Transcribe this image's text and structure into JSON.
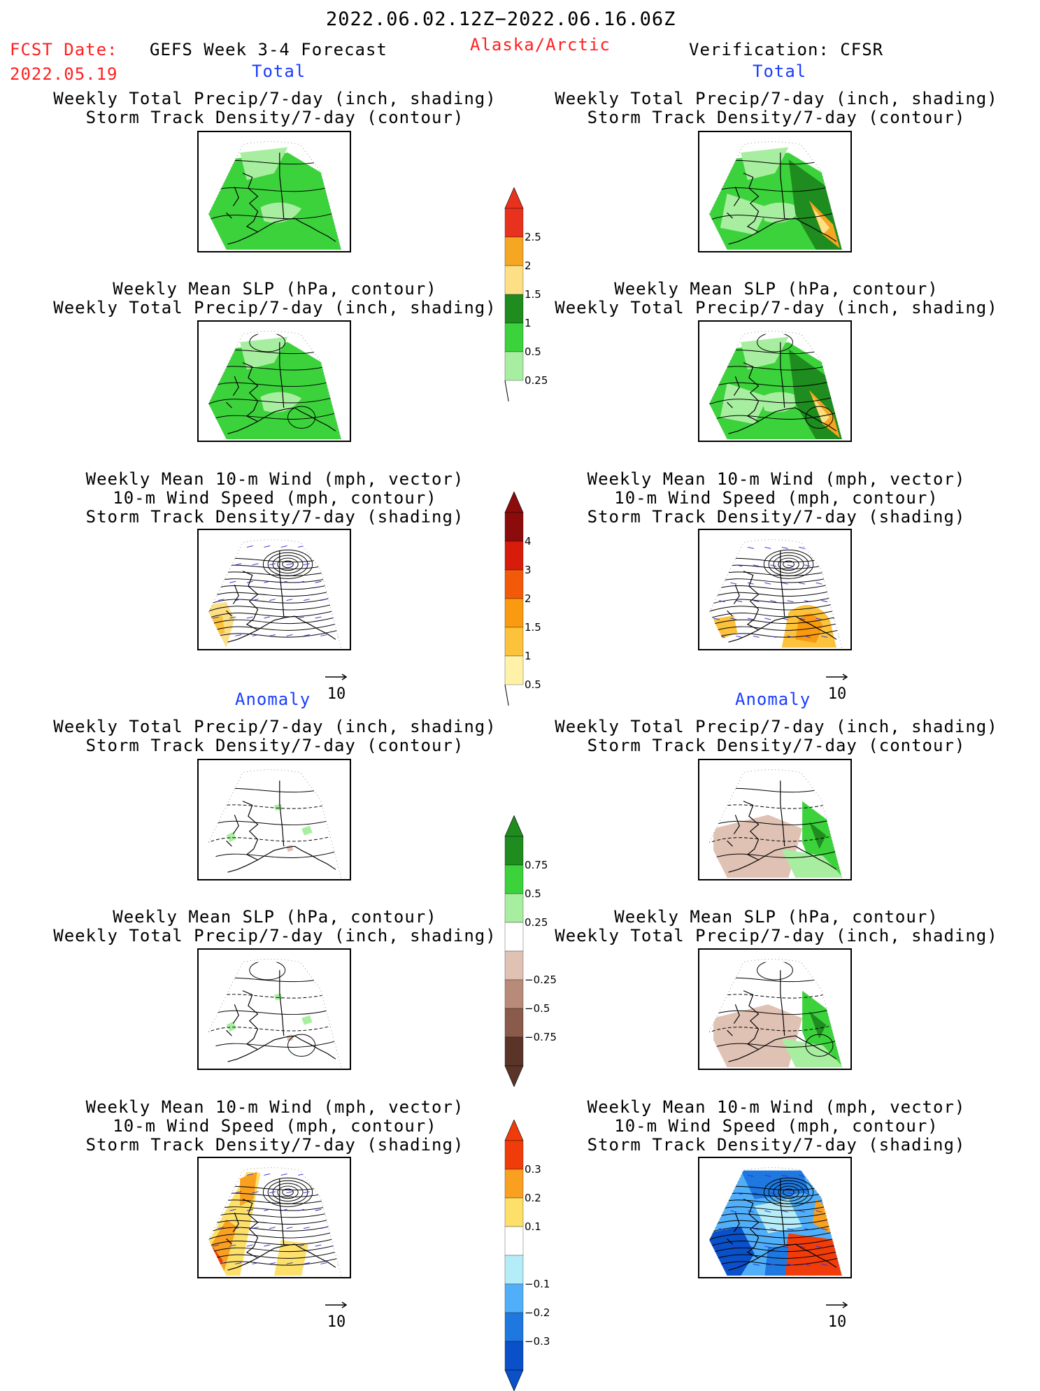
{
  "header": {
    "period": "2022.06.02.12Z−2022.06.16.06Z",
    "fcst_label": "FCST Date:",
    "fcst_date": "2022.05.19",
    "model": "GEFS Week 3-4 Forecast",
    "region": "Alaska/Arctic",
    "verification": "Verification: CFSR"
  },
  "sections": {
    "total_left": "Total",
    "total_right": "Total",
    "anomaly_left": "Anomaly",
    "anomaly_right": "Anomaly"
  },
  "panels": [
    {
      "id": "p1",
      "lines": [
        "Weekly Total Precip/7-day (inch, shading)",
        "Storm Track Density/7-day (contour)"
      ]
    },
    {
      "id": "p2",
      "lines": [
        "Weekly Total Precip/7-day (inch, shading)",
        "Storm Track Density/7-day (contour)"
      ]
    },
    {
      "id": "p3",
      "lines": [
        "Weekly Mean SLP (hPa, contour)",
        "Weekly Total Precip/7-day (inch, shading)"
      ]
    },
    {
      "id": "p4",
      "lines": [
        "Weekly Mean SLP (hPa, contour)",
        "Weekly Total Precip/7-day (inch, shading)"
      ]
    },
    {
      "id": "p5",
      "lines": [
        "Weekly Mean 10-m Wind (mph, vector)",
        "10-m Wind Speed (mph, contour)",
        "Storm Track Density/7-day (shading)"
      ]
    },
    {
      "id": "p6",
      "lines": [
        "Weekly Mean 10-m Wind (mph, vector)",
        "10-m Wind Speed (mph, contour)",
        "Storm Track Density/7-day (shading)"
      ]
    },
    {
      "id": "p7",
      "lines": [
        "Weekly Total Precip/7-day (inch, shading)",
        "Storm Track Density/7-day (contour)"
      ]
    },
    {
      "id": "p8",
      "lines": [
        "Weekly Total Precip/7-day (inch, shading)",
        "Storm Track Density/7-day (contour)"
      ]
    },
    {
      "id": "p9",
      "lines": [
        "Weekly Mean SLP (hPa, contour)",
        "Weekly Total Precip/7-day (inch, shading)"
      ]
    },
    {
      "id": "p10",
      "lines": [
        "Weekly Mean SLP (hPa, contour)",
        "Weekly Total Precip/7-day (inch, shading)"
      ]
    },
    {
      "id": "p11",
      "lines": [
        "Weekly Mean 10-m Wind (mph, vector)",
        "10-m Wind Speed (mph, contour)",
        "Storm Track Density/7-day (shading)"
      ]
    },
    {
      "id": "p12",
      "lines": [
        "Weekly Mean 10-m Wind (mph, vector)",
        "10-m Wind Speed (mph, contour)",
        "Storm Track Density/7-day (shading)"
      ]
    }
  ],
  "colorbars": [
    {
      "id": "precip_total",
      "labels": [
        "2.5",
        "2",
        "1.5",
        "1",
        "0.5",
        "0.25"
      ],
      "colors": [
        "#e8321e",
        "#f5a623",
        "#fde086",
        "#1e8c1e",
        "#3cd23c",
        "#a8eea0"
      ]
    },
    {
      "id": "storm_total",
      "labels": [
        "4",
        "3",
        "2",
        "1.5",
        "1",
        "0.5"
      ],
      "colors": [
        "#8c0c0c",
        "#d81c0c",
        "#f25a0a",
        "#f99a10",
        "#fcc23c",
        "#fff2a8"
      ]
    },
    {
      "id": "precip_anom",
      "labels": [
        "0.75",
        "0.5",
        "0.25",
        "−0.25",
        "−0.5",
        "−0.75"
      ],
      "colors": [
        "#1e8c1e",
        "#3cd23c",
        "#a8eea0",
        "#ffffff",
        "#e0c2b4",
        "#b88a7a",
        "#8a5a4a",
        "#5a3428"
      ]
    },
    {
      "id": "storm_anom",
      "labels": [
        "0.3",
        "0.2",
        "0.1",
        "−0.1",
        "−0.2",
        "−0.3"
      ],
      "colors": [
        "#f03c0a",
        "#f9a020",
        "#fde06a",
        "#ffffff",
        "#b4ecf8",
        "#50aff8",
        "#1e78e0",
        "#0a50c8"
      ]
    }
  ],
  "ref_arrow_label": "10",
  "colors": {
    "title_red": "#ff2020",
    "section_blue": "#1a3cff"
  }
}
